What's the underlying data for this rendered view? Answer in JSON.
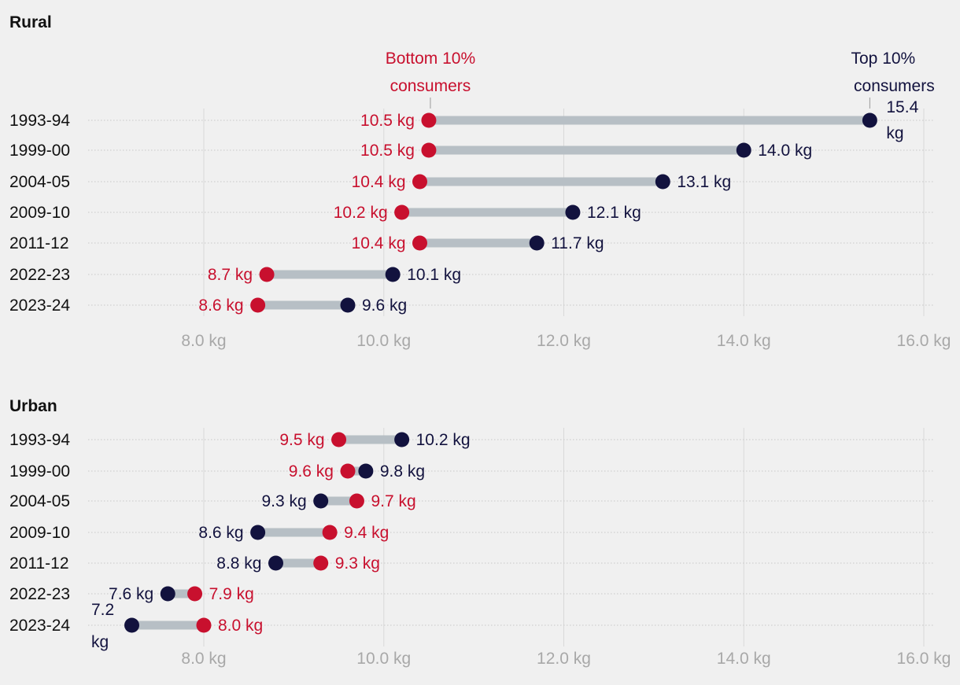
{
  "colors": {
    "bottom": "#c8102e",
    "top": "#12123e",
    "connector": "#b7bfc5",
    "grid": "#d9d9d9",
    "rowline": "#c9c9c9",
    "tick": "#a8a8a8",
    "text": "#111111"
  },
  "chart_data": [
    {
      "type": "dumbbell",
      "title": "Rural",
      "legend": {
        "bottom": [
          "Bottom 10%",
          "consumers"
        ],
        "top": [
          "Top 10%",
          "consumers"
        ]
      },
      "series": [
        {
          "key": "bottom",
          "name": "Bottom 10% consumers"
        },
        {
          "key": "top",
          "name": "Top 10% consumers"
        }
      ],
      "unit": "kg",
      "xlim": [
        7.0,
        16.0
      ],
      "xticks": [
        8,
        10,
        12,
        14,
        16
      ],
      "xtick_labels": [
        "8.0 kg",
        "10.0 kg",
        "12.0 kg",
        "14.0 kg",
        "16.0 kg"
      ],
      "categories": [
        "1993-94",
        "1999-00",
        "2004-05",
        "2009-10",
        "2011-12",
        "2022-23",
        "2023-24"
      ],
      "bottom": [
        10.5,
        10.5,
        10.4,
        10.2,
        10.4,
        8.7,
        8.6
      ],
      "top": [
        15.4,
        14.0,
        13.1,
        12.1,
        11.7,
        10.1,
        9.6
      ],
      "bottom_labels": [
        "10.5 kg",
        "10.5 kg",
        "10.4 kg",
        "10.2 kg",
        "10.4 kg",
        "8.7 kg",
        "8.6 kg"
      ],
      "top_labels": [
        "15.4 kg",
        "14.0 kg",
        "13.1 kg",
        "12.1 kg",
        "11.7 kg",
        "10.1 kg",
        "9.6 kg"
      ]
    },
    {
      "type": "dumbbell",
      "title": "Urban",
      "series": [
        {
          "key": "bottom",
          "name": "Bottom 10% consumers"
        },
        {
          "key": "top",
          "name": "Top 10% consumers"
        }
      ],
      "unit": "kg",
      "xlim": [
        7.0,
        16.0
      ],
      "xticks": [
        8,
        10,
        12,
        14,
        16
      ],
      "xtick_labels": [
        "8.0 kg",
        "10.0 kg",
        "12.0 kg",
        "14.0 kg",
        "16.0 kg"
      ],
      "categories": [
        "1993-94",
        "1999-00",
        "2004-05",
        "2009-10",
        "2011-12",
        "2022-23",
        "2023-24"
      ],
      "bottom": [
        9.5,
        9.6,
        9.7,
        9.4,
        9.3,
        7.9,
        8.0
      ],
      "top": [
        10.2,
        9.8,
        9.3,
        8.6,
        8.8,
        7.6,
        7.2
      ],
      "bottom_labels": [
        "9.5 kg",
        "9.6 kg",
        "9.7 kg",
        "9.4 kg",
        "9.3 kg",
        "7.9 kg",
        "8.0 kg"
      ],
      "top_labels": [
        "10.2 kg",
        "9.8 kg",
        "9.3 kg",
        "8.6 kg",
        "8.8 kg",
        "7.6 kg",
        "7.2 kg"
      ]
    }
  ]
}
